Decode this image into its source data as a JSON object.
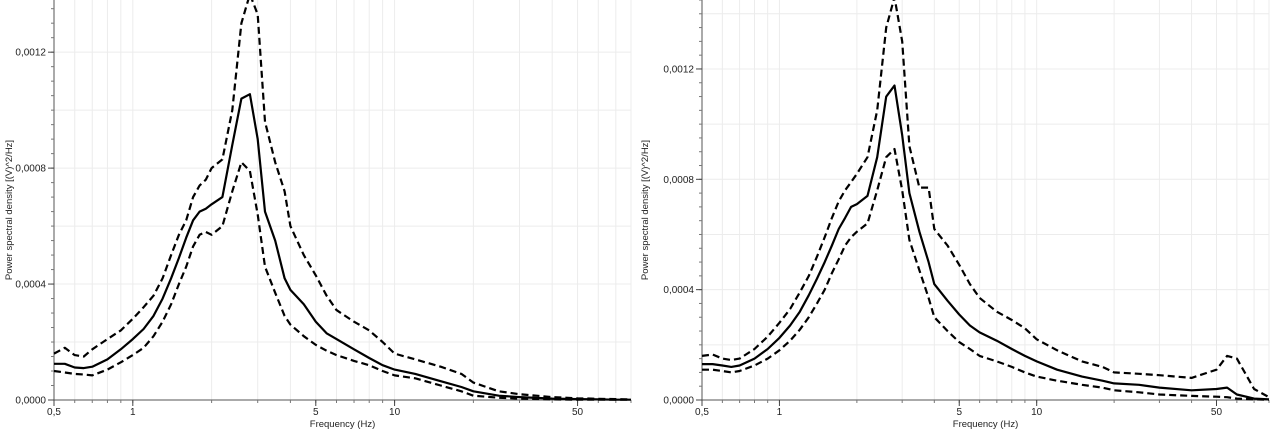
{
  "chart_data": [
    {
      "type": "line",
      "xlabel": "Frequency (Hz)",
      "ylabel": "Power spectral density [(V)^2/Hz]",
      "x_scale": "log",
      "xlim": [
        0.5,
        80
      ],
      "ylim": [
        0,
        0.00138
      ],
      "xticks": [
        {
          "v": 0.5,
          "label": "0,5"
        },
        {
          "v": 1,
          "label": "1"
        },
        {
          "v": 5,
          "label": "5"
        },
        {
          "v": 10,
          "label": "10"
        },
        {
          "v": 50,
          "label": "50"
        }
      ],
      "yticks": [
        {
          "v": 0,
          "label": "0,0000"
        },
        {
          "v": 0.0004,
          "label": "0,0004"
        },
        {
          "v": 0.0008,
          "label": "0,0008"
        },
        {
          "v": 0.0012,
          "label": "0,0012"
        }
      ],
      "grid": true,
      "legend": "none",
      "series": [
        {
          "style": "solid",
          "x": [
            0.5,
            0.55,
            0.6,
            0.65,
            0.7,
            0.8,
            0.9,
            1.0,
            1.1,
            1.2,
            1.3,
            1.4,
            1.5,
            1.6,
            1.7,
            1.8,
            1.9,
            2.0,
            2.2,
            2.4,
            2.6,
            2.8,
            3.0,
            3.2,
            3.5,
            3.8,
            4.0,
            4.5,
            5.0,
            5.5,
            6.0,
            7.0,
            8.0,
            9.0,
            10,
            12,
            15,
            18,
            20,
            25,
            30,
            40,
            50,
            60,
            70,
            80
          ],
          "y": [
            0.000125,
            0.000125,
            0.000112,
            0.00011,
            0.000115,
            0.00014,
            0.000175,
            0.00021,
            0.000245,
            0.00029,
            0.00035,
            0.00042,
            0.00049,
            0.00056,
            0.00062,
            0.00065,
            0.00066,
            0.000675,
            0.0007,
            0.00088,
            0.00104,
            0.001055,
            0.0009,
            0.00065,
            0.00055,
            0.00042,
            0.00038,
            0.00033,
            0.00027,
            0.00023,
            0.00021,
            0.000175,
            0.000145,
            0.00012,
            0.000105,
            9e-05,
            6.5e-05,
            4.5e-05,
            3e-05,
            1.5e-05,
            1e-05,
            5e-06,
            3e-06,
            2e-06,
            1e-06,
            1e-06
          ]
        },
        {
          "style": "dashed",
          "x": [
            0.5,
            0.55,
            0.6,
            0.65,
            0.7,
            0.8,
            0.9,
            1.0,
            1.1,
            1.2,
            1.3,
            1.4,
            1.5,
            1.6,
            1.7,
            1.8,
            1.9,
            2.0,
            2.2,
            2.4,
            2.6,
            2.8,
            3.0,
            3.2,
            3.5,
            3.8,
            4.0,
            4.5,
            5.0,
            5.5,
            6.0,
            7.0,
            8.0,
            9.0,
            10,
            12,
            15,
            18,
            20,
            25,
            30,
            40,
            50,
            60,
            70,
            80
          ],
          "y": [
            0.00016,
            0.00018,
            0.000155,
            0.00015,
            0.000175,
            0.00021,
            0.00024,
            0.00028,
            0.00032,
            0.00036,
            0.00042,
            0.0005,
            0.00057,
            0.00062,
            0.0007,
            0.00074,
            0.00076,
            0.0008,
            0.00083,
            0.001,
            0.0013,
            0.0014,
            0.00133,
            0.00096,
            0.00082,
            0.00072,
            0.0006,
            0.0005,
            0.00043,
            0.00036,
            0.00031,
            0.00027,
            0.00024,
            0.0002,
            0.00016,
            0.00014,
            0.000115,
            9e-05,
            6e-05,
            3e-05,
            2e-05,
            1e-05,
            6e-06,
            4e-06,
            3e-06,
            2e-06
          ]
        },
        {
          "style": "dashed",
          "x": [
            0.5,
            0.55,
            0.6,
            0.65,
            0.7,
            0.8,
            0.9,
            1.0,
            1.1,
            1.2,
            1.3,
            1.4,
            1.5,
            1.6,
            1.7,
            1.8,
            1.9,
            2.0,
            2.2,
            2.4,
            2.6,
            2.8,
            3.0,
            3.2,
            3.5,
            3.8,
            4.0,
            4.5,
            5.0,
            5.5,
            6.0,
            7.0,
            8.0,
            9.0,
            10,
            12,
            15,
            18,
            20,
            25,
            30,
            40,
            50,
            60,
            70,
            80
          ],
          "y": [
            0.0001,
            9.5e-05,
            9e-05,
            8.8e-05,
            8.5e-05,
            0.000105,
            0.00013,
            0.000155,
            0.00018,
            0.00022,
            0.00027,
            0.00033,
            0.0004,
            0.00046,
            0.00053,
            0.00057,
            0.00058,
            0.00057,
            0.0006,
            0.00072,
            0.00082,
            0.00079,
            0.00064,
            0.00046,
            0.00037,
            0.00029,
            0.00026,
            0.00022,
            0.00019,
            0.00017,
            0.000155,
            0.000135,
            0.00012,
            0.0001,
            8.5e-05,
            7.5e-05,
            5e-05,
            3e-05,
            1.5e-05,
            8e-06,
            5e-06,
            2e-06,
            1e-06,
            1e-06,
            1e-06,
            1e-06
          ]
        }
      ]
    },
    {
      "type": "line",
      "xlabel": "Frequency (Hz)",
      "ylabel": "Power spectral density [(V)^2/Hz]",
      "x_scale": "log",
      "xlim": [
        0.5,
        80
      ],
      "ylim": [
        0,
        0.00145
      ],
      "xticks": [
        {
          "v": 0.5,
          "label": "0,5"
        },
        {
          "v": 1,
          "label": "1"
        },
        {
          "v": 5,
          "label": "5"
        },
        {
          "v": 10,
          "label": "10"
        },
        {
          "v": 50,
          "label": "50"
        }
      ],
      "yticks": [
        {
          "v": 0,
          "label": "0,0000"
        },
        {
          "v": 0.0004,
          "label": "0,0004"
        },
        {
          "v": 0.0008,
          "label": "0,0008"
        },
        {
          "v": 0.0012,
          "label": "0,0012"
        }
      ],
      "grid": true,
      "legend": "none",
      "series": [
        {
          "style": "solid",
          "x": [
            0.5,
            0.55,
            0.6,
            0.65,
            0.7,
            0.8,
            0.9,
            1.0,
            1.1,
            1.2,
            1.3,
            1.4,
            1.5,
            1.6,
            1.7,
            1.8,
            1.9,
            2.0,
            2.2,
            2.4,
            2.6,
            2.8,
            3.0,
            3.2,
            3.5,
            3.8,
            4.0,
            4.5,
            5.0,
            5.5,
            6.0,
            7.0,
            8.0,
            9.0,
            10,
            12,
            15,
            18,
            20,
            25,
            30,
            40,
            50,
            55,
            60,
            70,
            80
          ],
          "y": [
            0.00013,
            0.00013,
            0.000125,
            0.00012,
            0.000125,
            0.00015,
            0.000185,
            0.000225,
            0.00027,
            0.00032,
            0.00038,
            0.00044,
            0.0005,
            0.00056,
            0.00062,
            0.00066,
            0.0007,
            0.00071,
            0.00074,
            0.00088,
            0.0011,
            0.00114,
            0.00096,
            0.00075,
            0.00061,
            0.0005,
            0.00042,
            0.00036,
            0.00031,
            0.00027,
            0.000245,
            0.000215,
            0.000185,
            0.00016,
            0.00014,
            0.00011,
            8.5e-05,
            7e-05,
            6e-05,
            5.5e-05,
            4.5e-05,
            3.5e-05,
            4e-05,
            4.5e-05,
            2e-05,
            5e-06,
            2e-06
          ]
        },
        {
          "style": "dashed",
          "x": [
            0.5,
            0.55,
            0.6,
            0.65,
            0.7,
            0.8,
            0.9,
            1.0,
            1.1,
            1.2,
            1.3,
            1.4,
            1.5,
            1.6,
            1.7,
            1.8,
            1.9,
            2.0,
            2.2,
            2.4,
            2.6,
            2.8,
            3.0,
            3.2,
            3.5,
            3.8,
            4.0,
            4.5,
            5.0,
            5.5,
            6.0,
            7.0,
            8.0,
            9.0,
            10,
            12,
            15,
            18,
            20,
            25,
            30,
            40,
            50,
            55,
            60,
            70,
            80
          ],
          "y": [
            0.00016,
            0.000165,
            0.00015,
            0.000145,
            0.00015,
            0.000185,
            0.00023,
            0.00028,
            0.00033,
            0.00039,
            0.00045,
            0.00052,
            0.00059,
            0.00066,
            0.00072,
            0.00076,
            0.00079,
            0.00082,
            0.00088,
            0.00105,
            0.00135,
            0.00146,
            0.0013,
            0.00092,
            0.00077,
            0.00077,
            0.00062,
            0.00056,
            0.00049,
            0.00042,
            0.00037,
            0.00032,
            0.00029,
            0.00026,
            0.00022,
            0.00018,
            0.00014,
            0.00012,
            0.0001,
            9.5e-05,
            9e-05,
            8e-05,
            0.00011,
            0.00016,
            0.00015,
            4e-05,
            1e-05
          ]
        },
        {
          "style": "dashed",
          "x": [
            0.5,
            0.55,
            0.6,
            0.65,
            0.7,
            0.8,
            0.9,
            1.0,
            1.1,
            1.2,
            1.3,
            1.4,
            1.5,
            1.6,
            1.7,
            1.8,
            1.9,
            2.0,
            2.2,
            2.4,
            2.6,
            2.8,
            3.0,
            3.2,
            3.5,
            3.8,
            4.0,
            4.5,
            5.0,
            5.5,
            6.0,
            7.0,
            8.0,
            9.0,
            10,
            12,
            15,
            18,
            20,
            25,
            30,
            40,
            50,
            55,
            60,
            70,
            80
          ],
          "y": [
            0.00011,
            0.00011,
            0.000105,
            0.0001,
            0.000105,
            0.000125,
            0.00015,
            0.00018,
            0.000215,
            0.000255,
            0.0003,
            0.00035,
            0.0004,
            0.00046,
            0.00051,
            0.00056,
            0.00059,
            0.00061,
            0.00064,
            0.00076,
            0.00088,
            0.00091,
            0.00076,
            0.00058,
            0.00047,
            0.00037,
            0.0003,
            0.00025,
            0.00021,
            0.000185,
            0.00016,
            0.00014,
            0.00012,
            0.0001,
            8.5e-05,
            7e-05,
            5.5e-05,
            4.5e-05,
            3.5e-05,
            2.8e-05,
            2e-05,
            1.5e-05,
            1.2e-05,
            1e-05,
            5e-06,
            2e-06,
            1e-06
          ]
        }
      ]
    }
  ]
}
